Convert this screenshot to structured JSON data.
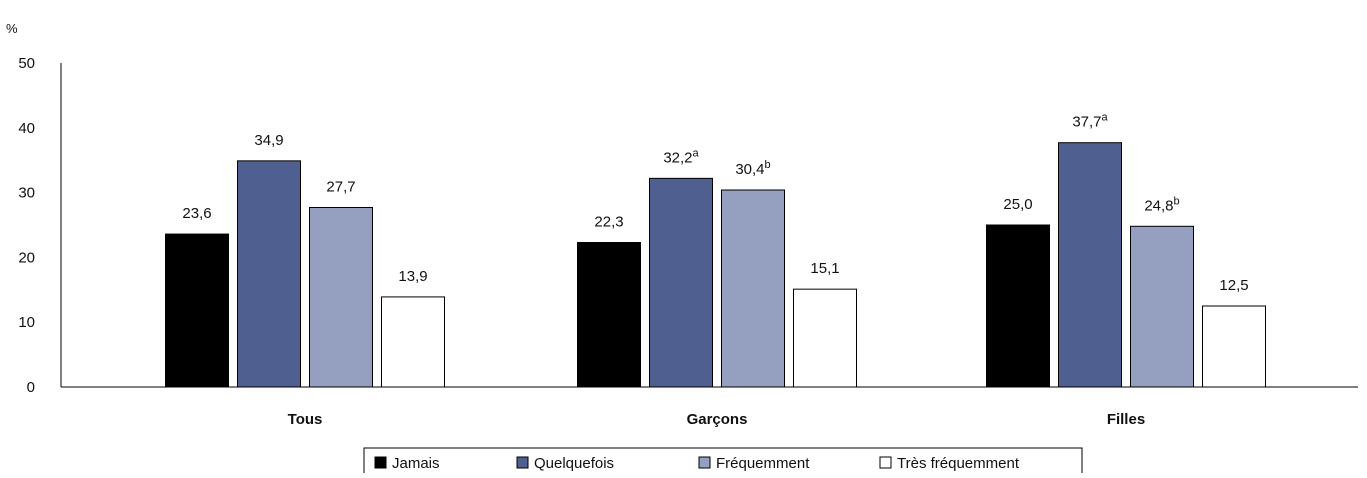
{
  "chart_data": {
    "type": "bar",
    "ylabel": "%",
    "ylim": [
      0,
      50
    ],
    "yticks": [
      0,
      10,
      20,
      30,
      40,
      50
    ],
    "grid": false,
    "categories": [
      "Tous",
      "Garçons",
      "Filles"
    ],
    "series": [
      {
        "name": "Jamais",
        "color": "#000000",
        "values": [
          23.6,
          22.3,
          25.0
        ],
        "labels": [
          "23,6",
          "22,3",
          "25,0"
        ],
        "superscripts": [
          "",
          "",
          ""
        ]
      },
      {
        "name": "Quelquefois",
        "color": "#4f5f8f",
        "values": [
          34.9,
          32.2,
          37.7
        ],
        "labels": [
          "34,9",
          "32,2",
          "37,7"
        ],
        "superscripts": [
          "",
          "a",
          "a"
        ]
      },
      {
        "name": "Fréquemment",
        "color": "#959fc0",
        "values": [
          27.7,
          30.4,
          24.8
        ],
        "labels": [
          "27,7",
          "30,4",
          "24,8"
        ],
        "superscripts": [
          "",
          "b",
          "b"
        ]
      },
      {
        "name": "Très fréquemment",
        "color": "#ffffff",
        "values": [
          13.9,
          15.1,
          12.5
        ],
        "labels": [
          "13,9",
          "15,1",
          "12,5"
        ],
        "superscripts": [
          "",
          "",
          ""
        ]
      }
    ],
    "legend_position": "bottom"
  }
}
